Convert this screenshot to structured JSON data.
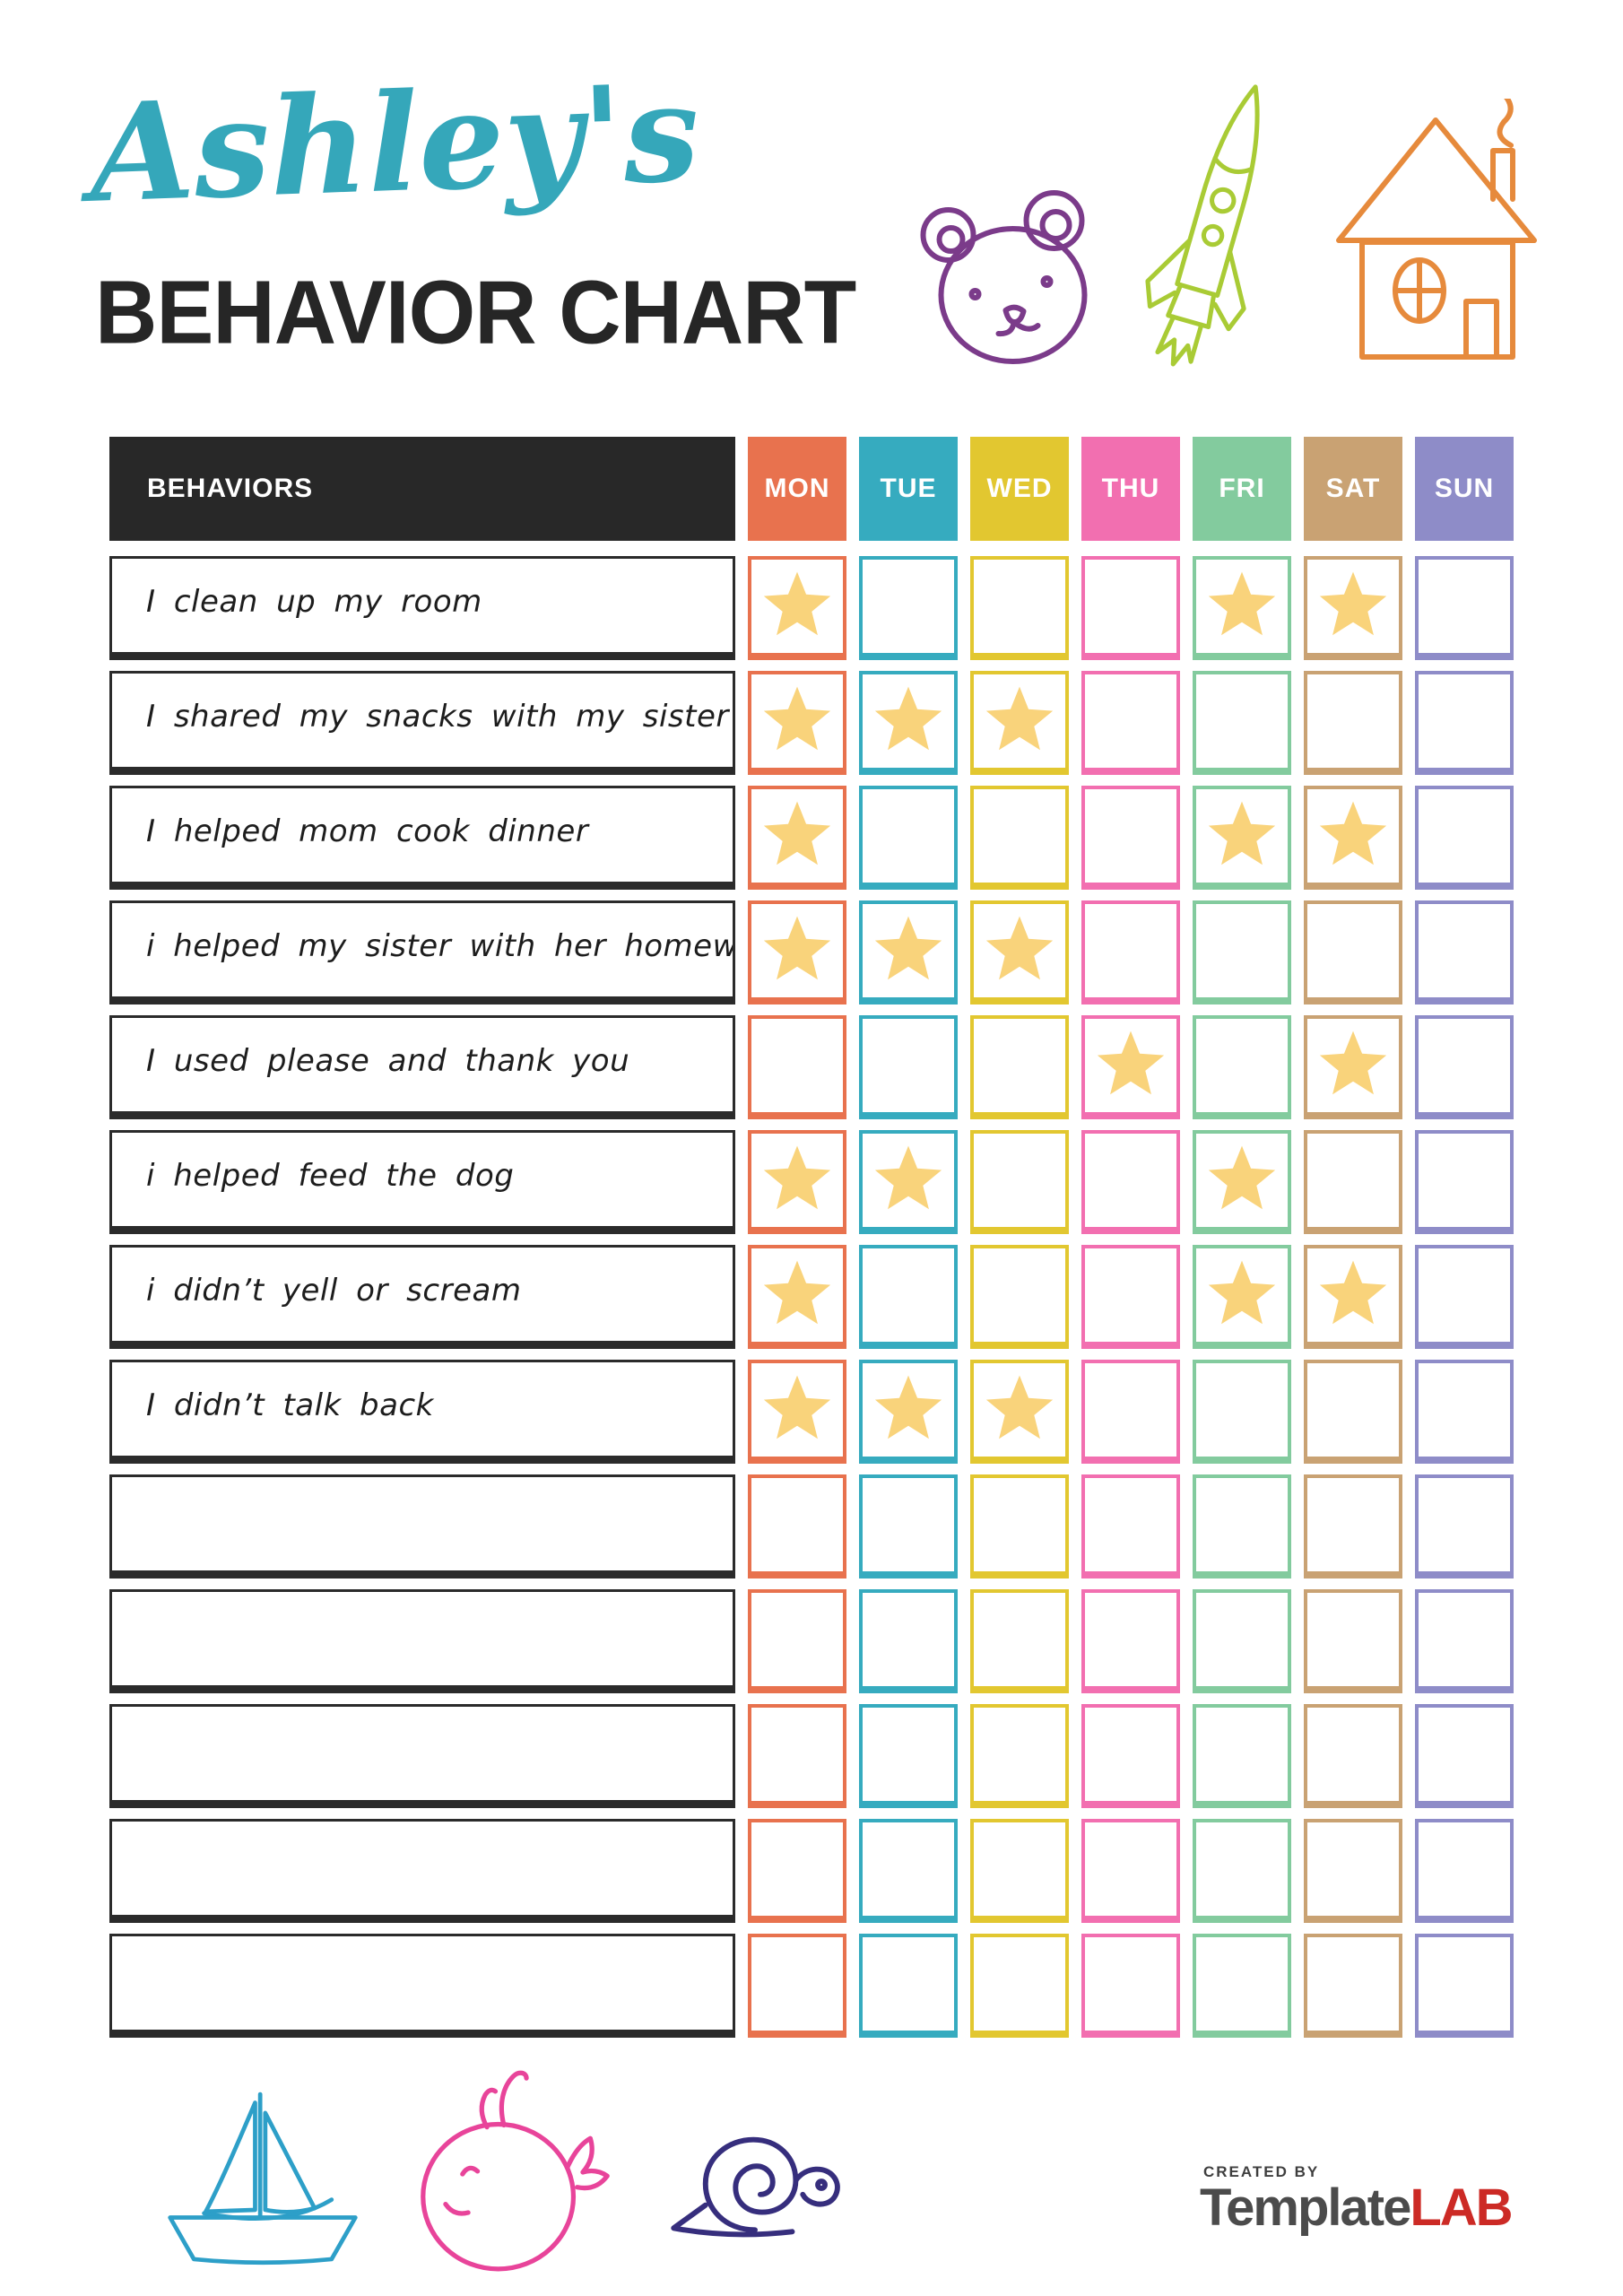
{
  "header": {
    "kid_name": "Ashley's",
    "title": "BEHAVIOR CHART",
    "name_color": "#35a7ba",
    "title_color": "#262626",
    "doodles": [
      "bear-icon",
      "rocket-icon",
      "house-icon"
    ],
    "doodle_colors": {
      "bear": "#7b3b8a",
      "rocket": "#a9cb35",
      "house": "#e68a3c"
    }
  },
  "table": {
    "behaviors_header": "BEHAVIORS",
    "header_bg": "#282828",
    "star_color": "#f9d37b",
    "days": [
      {
        "label": "MON",
        "color": "#e8724e"
      },
      {
        "label": "TUE",
        "color": "#36abbf"
      },
      {
        "label": "WED",
        "color": "#e2c730"
      },
      {
        "label": "THU",
        "color": "#f26fb0"
      },
      {
        "label": "FRI",
        "color": "#83cb9e"
      },
      {
        "label": "SAT",
        "color": "#c9a273"
      },
      {
        "label": "SUN",
        "color": "#8e8cc8"
      }
    ],
    "rows": [
      {
        "behavior": "I clean up my room",
        "stars": [
          true,
          false,
          false,
          false,
          true,
          true,
          false
        ]
      },
      {
        "behavior": "I shared my snacks with my sister",
        "stars": [
          true,
          true,
          true,
          false,
          false,
          false,
          false
        ]
      },
      {
        "behavior": "I helped mom cook dinner",
        "stars": [
          true,
          false,
          false,
          false,
          true,
          true,
          false
        ]
      },
      {
        "behavior": "i helped my sister with her homework",
        "stars": [
          true,
          true,
          true,
          false,
          false,
          false,
          false
        ]
      },
      {
        "behavior": "I used please and thank you",
        "stars": [
          false,
          false,
          false,
          true,
          false,
          true,
          false
        ]
      },
      {
        "behavior": "i helped feed the dog",
        "stars": [
          true,
          true,
          false,
          false,
          true,
          false,
          false
        ]
      },
      {
        "behavior": "i didn’t yell or scream",
        "stars": [
          true,
          false,
          false,
          false,
          true,
          true,
          false
        ]
      },
      {
        "behavior": "I didn’t talk back",
        "stars": [
          true,
          true,
          true,
          false,
          false,
          false,
          false
        ]
      },
      {
        "behavior": "",
        "stars": [
          false,
          false,
          false,
          false,
          false,
          false,
          false
        ]
      },
      {
        "behavior": "",
        "stars": [
          false,
          false,
          false,
          false,
          false,
          false,
          false
        ]
      },
      {
        "behavior": "",
        "stars": [
          false,
          false,
          false,
          false,
          false,
          false,
          false
        ]
      },
      {
        "behavior": "",
        "stars": [
          false,
          false,
          false,
          false,
          false,
          false,
          false
        ]
      },
      {
        "behavior": "",
        "stars": [
          false,
          false,
          false,
          false,
          false,
          false,
          false
        ]
      }
    ]
  },
  "footer": {
    "doodles": [
      "sailboat-icon",
      "whale-icon",
      "snail-icon"
    ],
    "doodle_colors": {
      "sailboat": "#2d9fc8",
      "whale": "#e8449a",
      "snail": "#362e7d"
    },
    "created_by": "CREATED BY",
    "brand_name": "Template",
    "brand_suffix": "LAB"
  }
}
